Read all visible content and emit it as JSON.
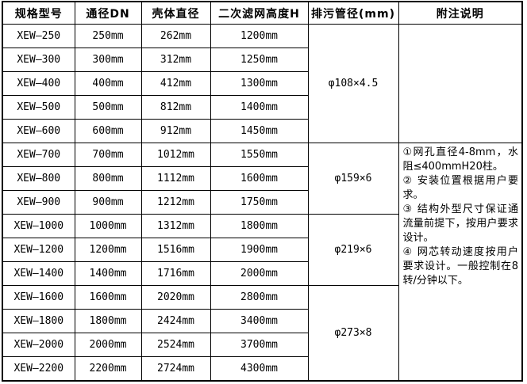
{
  "table": {
    "headers": [
      "规格型号",
      "通径DN",
      "壳体直径",
      "二次滤网高度H",
      "排污管径(mm)",
      "附注说明"
    ],
    "rows": [
      {
        "model": "XEW—250",
        "dn": "250mm",
        "shell": "262mm",
        "height": "1200mm"
      },
      {
        "model": "XEW—300",
        "dn": "300mm",
        "shell": "312mm",
        "height": "1250mm"
      },
      {
        "model": "XEW—400",
        "dn": "400mm",
        "shell": "412mm",
        "height": "1300mm"
      },
      {
        "model": "XEW—500",
        "dn": "500mm",
        "shell": "812mm",
        "height": "1400mm"
      },
      {
        "model": "XEW—600",
        "dn": "600mm",
        "shell": "912mm",
        "height": "1450mm"
      },
      {
        "model": "XEW—700",
        "dn": "700mm",
        "shell": "1012mm",
        "height": "1550mm"
      },
      {
        "model": "XEW—800",
        "dn": "800mm",
        "shell": "1112mm",
        "height": "1600mm"
      },
      {
        "model": "XEW—900",
        "dn": "900mm",
        "shell": "1212mm",
        "height": "1750mm"
      },
      {
        "model": "XEW—1000",
        "dn": "1000mm",
        "shell": "1312mm",
        "height": "1800mm"
      },
      {
        "model": "XEW—1200",
        "dn": "1200mm",
        "shell": "1516mm",
        "height": "1900mm"
      },
      {
        "model": "XEW—1400",
        "dn": "1400mm",
        "shell": "1716mm",
        "height": "2000mm"
      },
      {
        "model": "XEW—1600",
        "dn": "1600mm",
        "shell": "2020mm",
        "height": "2800mm"
      },
      {
        "model": "XEW—1800",
        "dn": "1800mm",
        "shell": "2424mm",
        "height": "3400mm"
      },
      {
        "model": "XEW—2000",
        "dn": "2000mm",
        "shell": "2524mm",
        "height": "3700mm"
      },
      {
        "model": "XEW—2200",
        "dn": "2200mm",
        "shell": "2724mm",
        "height": "4300mm"
      }
    ],
    "drain_groups": [
      {
        "label": "φ108×4.5",
        "span": 5
      },
      {
        "label": "φ159×6",
        "span": 3
      },
      {
        "label": "φ219×6",
        "span": 3
      },
      {
        "label": "φ273×8",
        "span": 4
      }
    ],
    "notes": {
      "empty_span": 5,
      "span": 10,
      "items": [
        "①网孔直径4-8mm，水阻≤400mmH20柱。",
        "② 安装位置根据用户要求。",
        "③ 结构外型尺寸保证通流量前提下，按用户要求设计。",
        "④ 网芯转动速度按用户要求设计。一般控制在8转/分钟以下。"
      ]
    }
  },
  "colors": {
    "border": "#000000",
    "text": "#000000",
    "background": "#ffffff"
  }
}
